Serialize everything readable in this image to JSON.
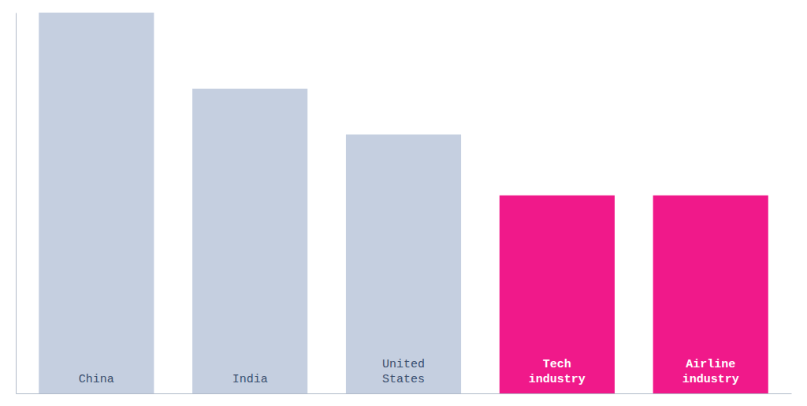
{
  "chart_data": {
    "type": "bar",
    "categories": [
      "China",
      "India",
      "United\nStates",
      "Tech\nindustry",
      "Airline\nindustry"
    ],
    "values": [
      100,
      80,
      68,
      52,
      52
    ],
    "colors": [
      "#c5cfe0",
      "#c5cfe0",
      "#c5cfe0",
      "#f0198a",
      "#f0198a"
    ],
    "ylim": [
      0,
      100
    ],
    "tick_labels": "x"
  }
}
